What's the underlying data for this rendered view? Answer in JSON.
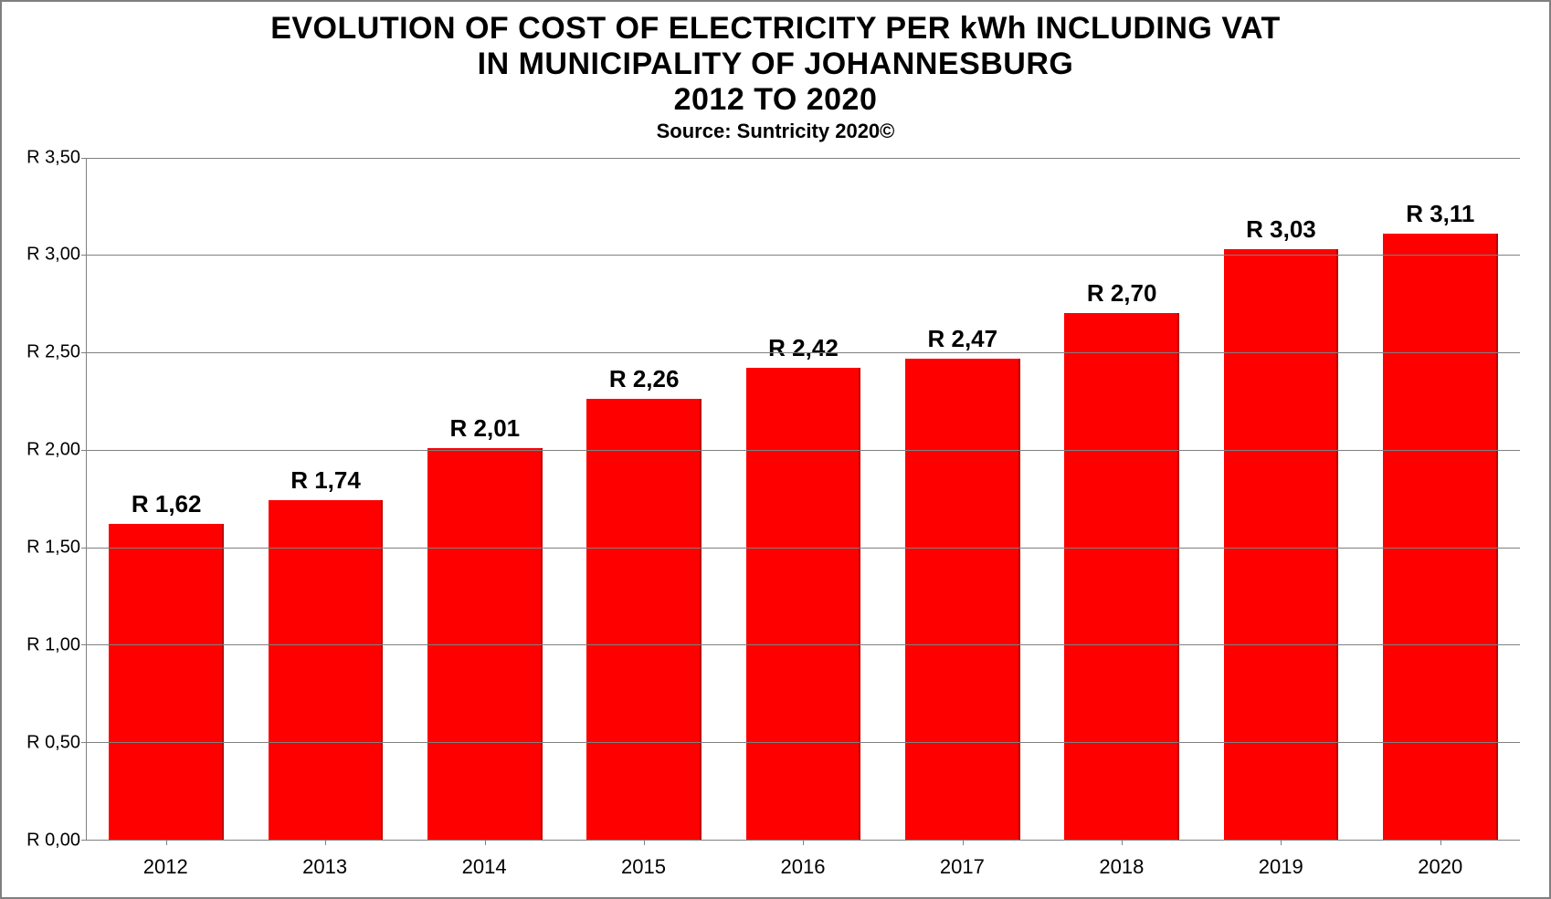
{
  "title": {
    "line1": "EVOLUTION OF COST OF ELECTRICITY PER kWh INCLUDING VAT",
    "line2": "IN MUNICIPALITY OF JOHANNESBURG",
    "line3": "2012 TO 2020",
    "subtitle": "Source: Suntricity 2020©",
    "title_fontsize": 34,
    "title_fontweight": 900,
    "title_color": "#000000",
    "subtitle_fontsize": 22,
    "subtitle_fontweight": 900,
    "subtitle_color": "#000000"
  },
  "chart": {
    "type": "bar",
    "categories": [
      "2012",
      "2013",
      "2014",
      "2015",
      "2016",
      "2017",
      "2018",
      "2019",
      "2020"
    ],
    "values": [
      1.62,
      1.74,
      2.01,
      2.26,
      2.42,
      2.47,
      2.7,
      3.03,
      3.11
    ],
    "value_labels": [
      "R 1,62",
      "R 1,74",
      "R 2,01",
      "R 2,26",
      "R 2,42",
      "R 2,47",
      "R 2,70",
      "R 3,03",
      "R 3,11"
    ],
    "bar_color": "#ff0000",
    "bar_colors": [
      "#ff0000",
      "#ff0000",
      "#ff0000",
      "#ff0000",
      "#ff0000",
      "#ff0000",
      "#ff0000",
      "#ff0000",
      "#ff0000"
    ],
    "bar_width": 0.72,
    "value_label_fontsize": 26,
    "value_label_fontweight": 900,
    "value_label_color": "#000000",
    "xaxis": {
      "label_fontsize": 22,
      "label_color": "#000000",
      "tick_color": "#808080"
    },
    "yaxis": {
      "min": 0.0,
      "max": 3.5,
      "tick_step": 0.5,
      "tick_values": [
        0.0,
        0.5,
        1.0,
        1.5,
        2.0,
        2.5,
        3.0,
        3.5
      ],
      "tick_labels": [
        "R 0,00",
        "R 0,50",
        "R 1,00",
        "R 1,50",
        "R 2,00",
        "R 2,50",
        "R 3,00",
        "R 3,50"
      ],
      "label_fontsize": 20,
      "label_color": "#000000",
      "grid_color": "#808080",
      "axis_color": "#808080"
    },
    "background_color": "#ffffff",
    "outer_border_color": "#7f7f7f"
  }
}
